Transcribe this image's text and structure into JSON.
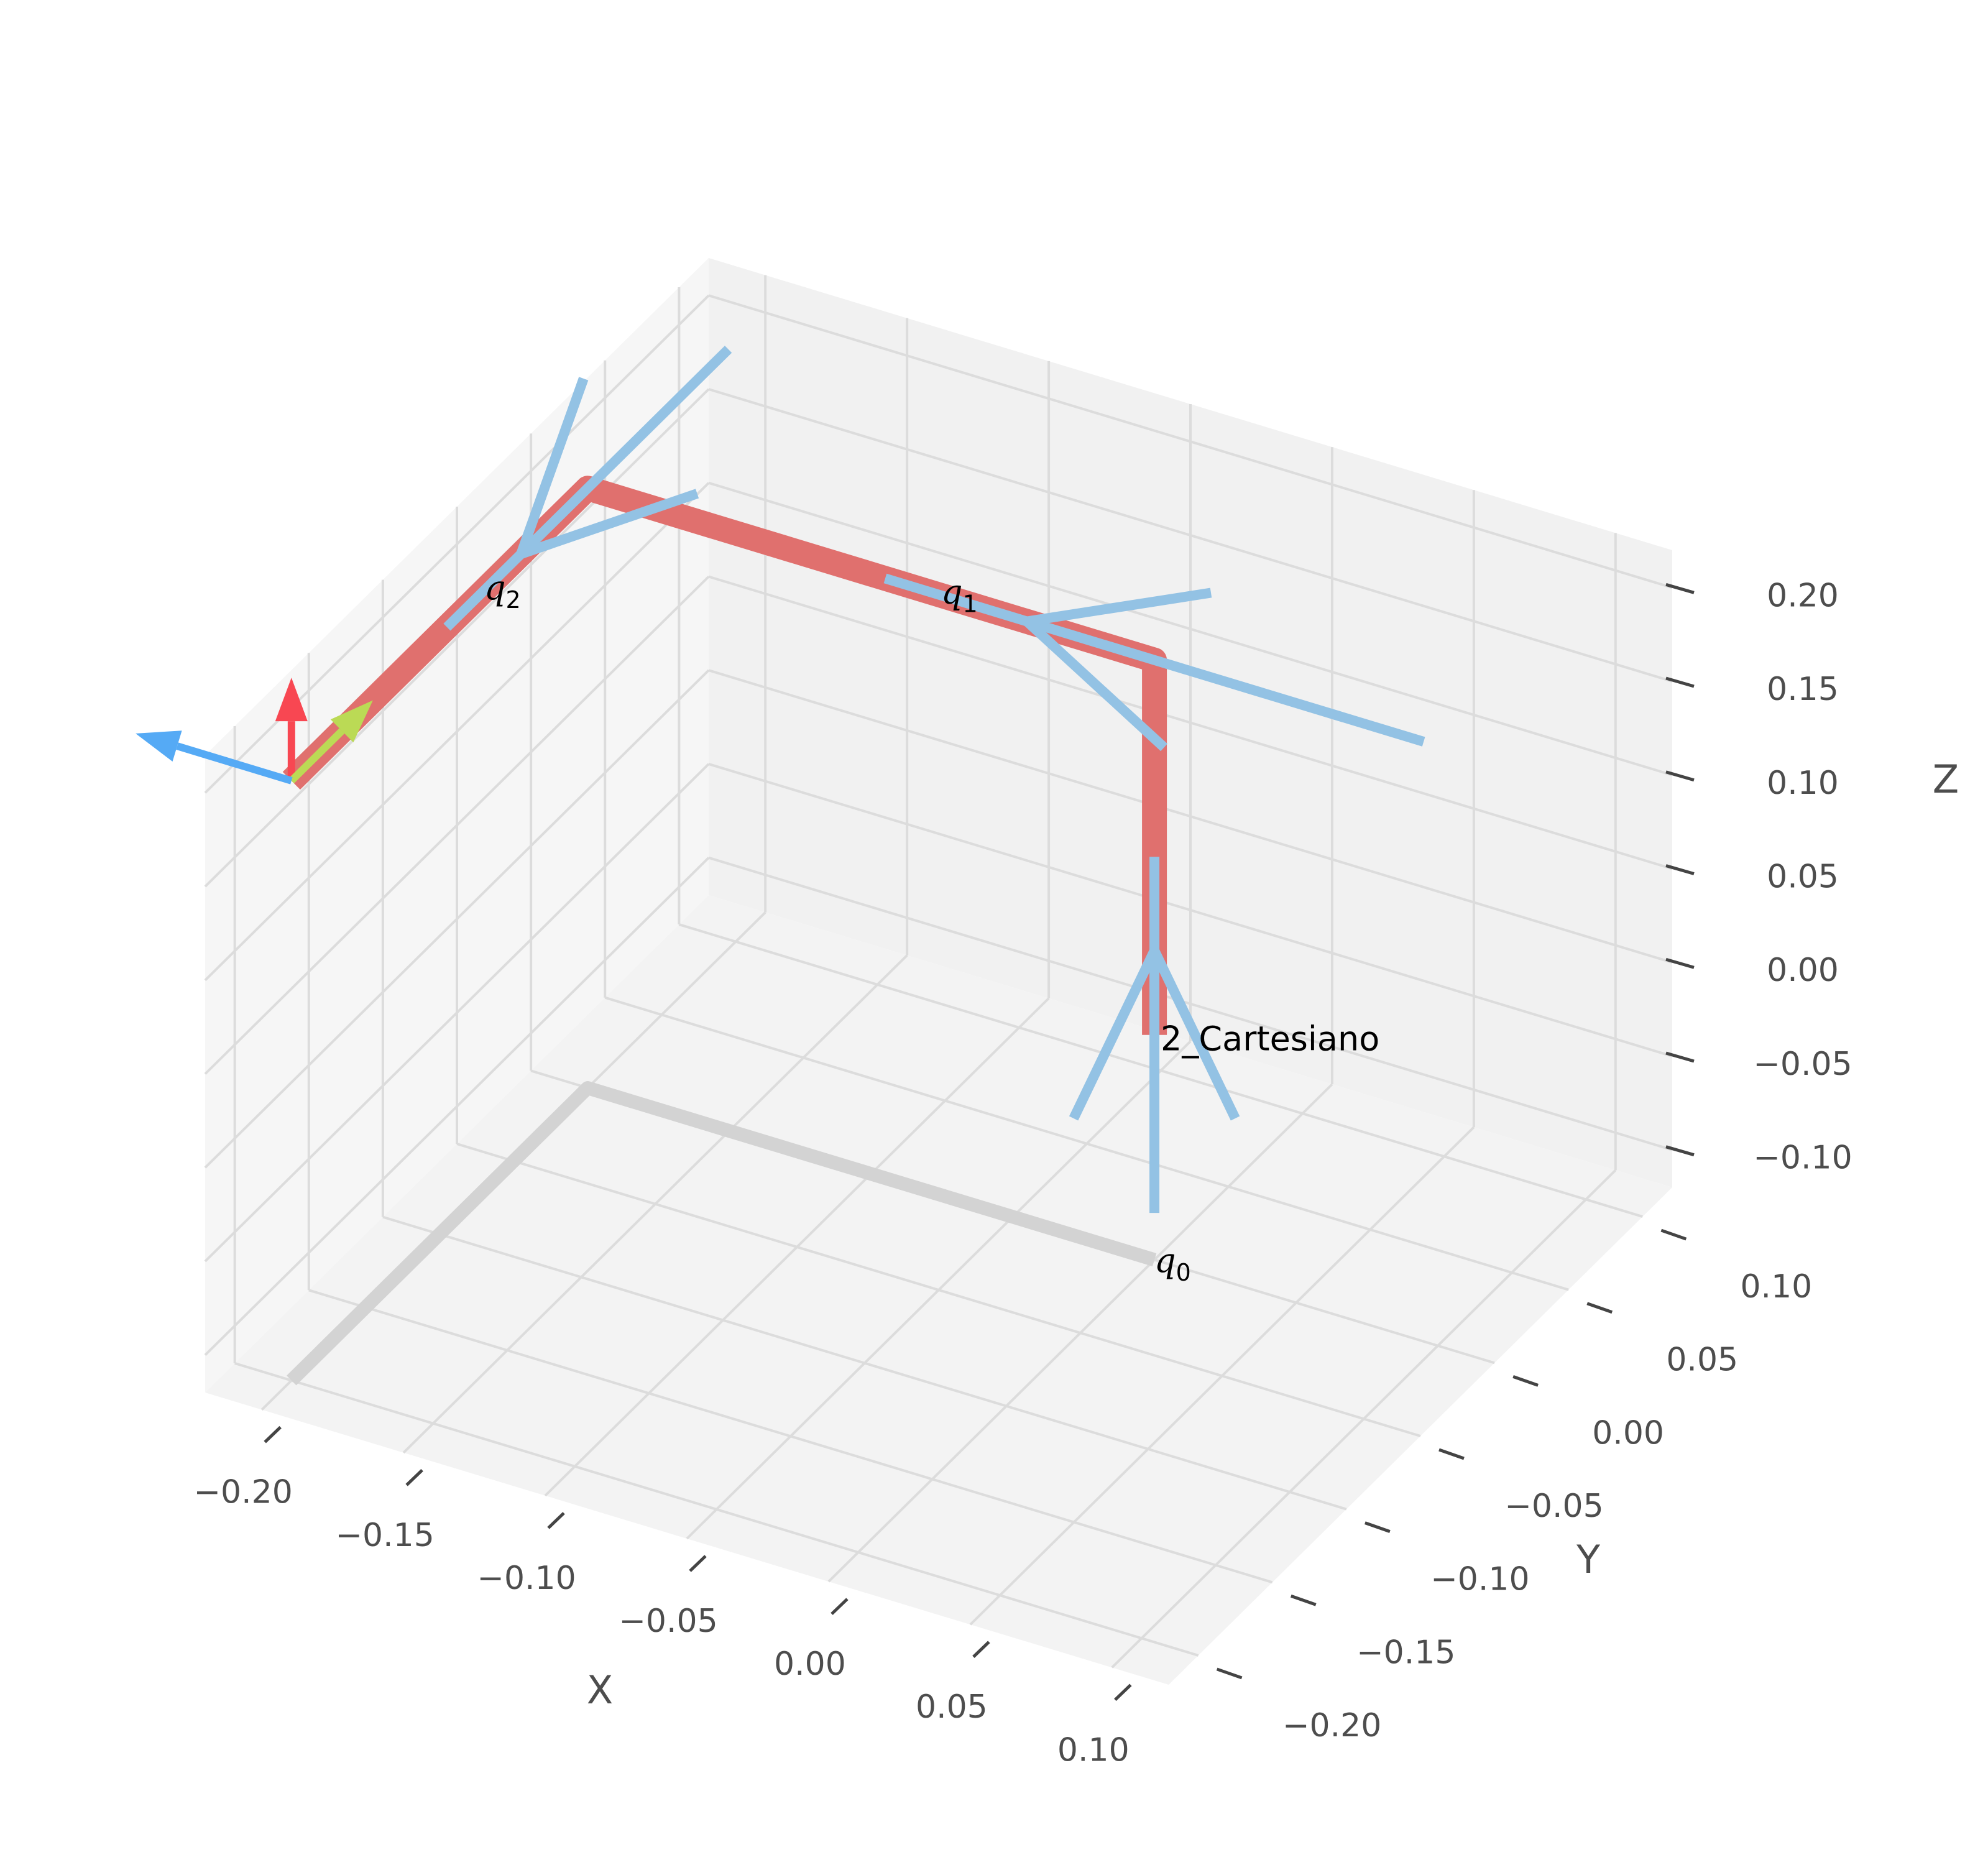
{
  "chart_data": {
    "type": "3d-line",
    "title": "",
    "robot_name": "2_Cartesiano",
    "xlabel": "X",
    "ylabel": "Y",
    "zlabel": "Z",
    "xlim": [
      -0.22,
      0.12
    ],
    "ylim": [
      -0.22,
      0.12
    ],
    "zlim": [
      -0.12,
      0.22
    ],
    "x_ticks": [
      "−0.20",
      "−0.15",
      "−0.10",
      "−0.05",
      "0.00",
      "0.05",
      "0.10"
    ],
    "y_ticks": [
      "−0.20",
      "−0.15",
      "−0.10",
      "−0.05",
      "0.00",
      "0.05",
      "0.10"
    ],
    "z_ticks": [
      "−0.10",
      "−0.05",
      "0.00",
      "0.05",
      "0.10",
      "0.15",
      "0.20"
    ],
    "x_tick_values": [
      -0.2,
      -0.15,
      -0.1,
      -0.05,
      0.0,
      0.05,
      0.1
    ],
    "y_tick_values": [
      -0.2,
      -0.15,
      -0.1,
      -0.05,
      0.0,
      0.05,
      0.1
    ],
    "z_tick_values": [
      -0.1,
      -0.05,
      0.0,
      0.05,
      0.1,
      0.15,
      0.2
    ],
    "grid": true,
    "links": [
      [
        0,
        0,
        0
      ],
      [
        0,
        0,
        0.2
      ],
      [
        -0.2,
        0,
        0.2
      ],
      [
        -0.2,
        -0.2,
        0.2
      ]
    ],
    "shadow": [
      [
        0,
        0,
        -0.12
      ],
      [
        -0.2,
        0,
        -0.12
      ],
      [
        -0.2,
        -0.2,
        -0.12
      ]
    ],
    "joints": [
      {
        "label": "q",
        "sub": "0",
        "origin": [
          0,
          0,
          0
        ],
        "dir": [
          0,
          0,
          1
        ]
      },
      {
        "label": "q",
        "sub": "1",
        "origin": [
          0,
          0,
          0.2
        ],
        "dir": [
          -1,
          0,
          0
        ]
      },
      {
        "label": "q",
        "sub": "2",
        "origin": [
          -0.2,
          0,
          0.2
        ],
        "dir": [
          0,
          -1,
          0
        ]
      }
    ],
    "ee_frame": {
      "origin": [
        -0.2,
        -0.2,
        0.2
      ],
      "axes": [
        {
          "name": "x",
          "dir": [
            0,
            0,
            1
          ],
          "color": "#f84752"
        },
        {
          "name": "y",
          "dir": [
            0,
            1,
            0
          ],
          "color": "#bbda55"
        },
        {
          "name": "z",
          "dir": [
            -1,
            0,
            0
          ],
          "color": "#55aaf5"
        }
      ]
    },
    "colors": {
      "link": "#e0706e",
      "joint_axis": "#93c2e4",
      "shadow": "#d3d3d3",
      "pane_left": "#f6f6f6",
      "pane_right": "#f1f1f1",
      "pane_floor": "#f3f3f3",
      "grid": "#dcdcdc"
    }
  }
}
